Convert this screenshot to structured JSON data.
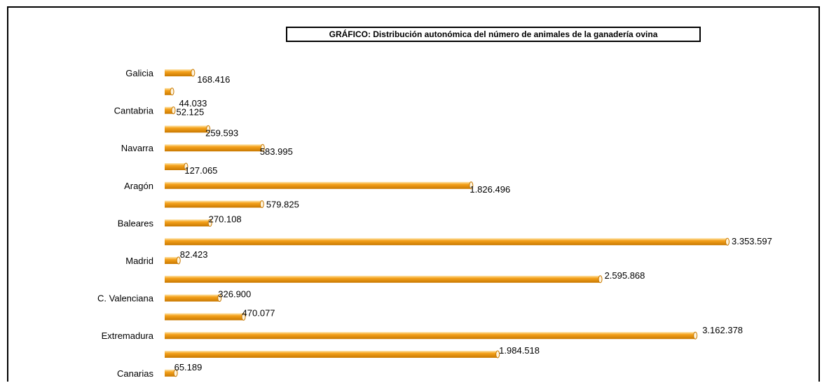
{
  "chart_data": {
    "type": "bar",
    "orientation": "horizontal",
    "title": "GRÁFICO: Distribución autonómica del número de animales de la ganadería ovina",
    "xlabel": "",
    "ylabel": "",
    "grid": false,
    "legend": "none",
    "categories": [
      "Galicia",
      "",
      "Cantabria",
      "",
      "Navarra",
      "",
      "Aragón",
      "",
      "Baleares",
      "",
      "Madrid",
      "",
      "C. Valenciana",
      "",
      "Extremadura",
      "",
      "Canarias"
    ],
    "values": [
      168416,
      44033,
      52125,
      259593,
      583995,
      127065,
      1826496,
      579825,
      270108,
      3353597,
      82423,
      2595868,
      326900,
      470077,
      3162378,
      1984518,
      65189
    ],
    "value_labels": [
      "168.416",
      "44.033",
      "52.125",
      "259.593",
      "583.995",
      "127.065",
      "1.826.496",
      "579.825",
      "270.108",
      "3.353.597",
      "82.423",
      "2.595.868",
      "326.900",
      "470.077",
      "3.162.378",
      "1.984.518",
      "65.189"
    ],
    "bar_color": "#f5a21c",
    "bar_dark_color": "#c87800"
  }
}
